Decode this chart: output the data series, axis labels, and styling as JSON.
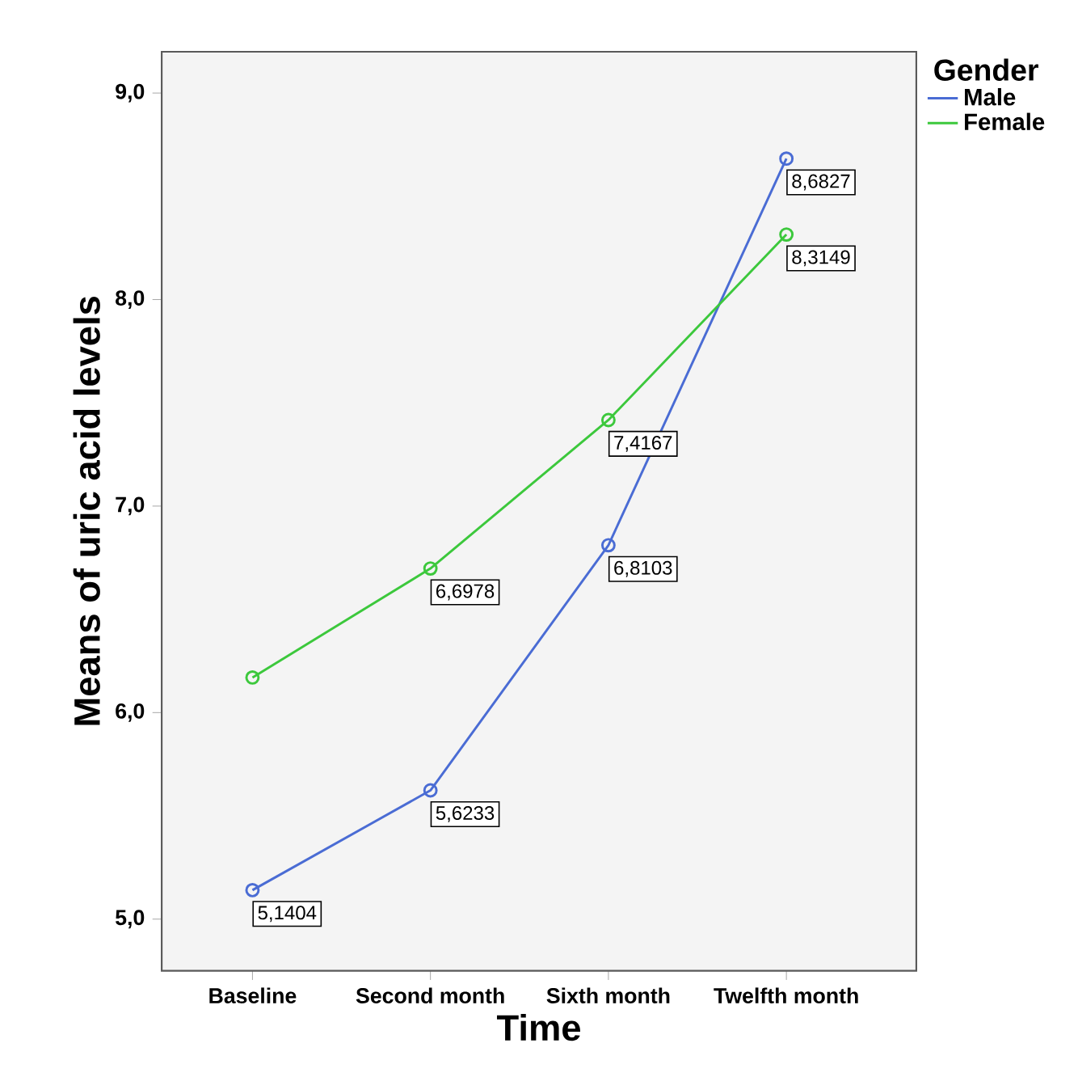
{
  "chart_data": {
    "type": "line",
    "xlabel": "Time",
    "ylabel": "Means of uric acid levels",
    "legend_title": "Gender",
    "categories": [
      "Baseline",
      "Second month",
      "Sixth month",
      "Twelfth month"
    ],
    "series": [
      {
        "name": "Male",
        "color": "#4a6cd4",
        "values": [
          5.1404,
          5.6233,
          6.8103,
          8.6827
        ],
        "value_labels": [
          "5,1404",
          "5,6233",
          "6,8103",
          "8,6827"
        ]
      },
      {
        "name": "Female",
        "color": "#3cc83c",
        "values": [
          6.17,
          6.6978,
          7.4167,
          8.3149
        ],
        "value_labels": [
          null,
          "6,6978",
          "7,4167",
          "8,3149"
        ]
      }
    ],
    "ylim": [
      4.75,
      9.2
    ],
    "yticks": [
      {
        "value": 5,
        "label": "5,0"
      },
      {
        "value": 6,
        "label": "6,0"
      },
      {
        "value": 7,
        "label": "7,0"
      },
      {
        "value": 8,
        "label": "8,0"
      },
      {
        "value": 9,
        "label": "9,0"
      }
    ],
    "marker": "circle",
    "line_style": "solid",
    "legend": "top right",
    "grid": false
  }
}
